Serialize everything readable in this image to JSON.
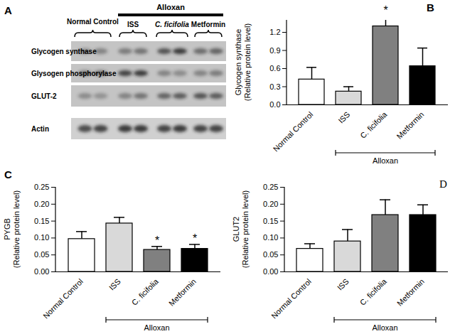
{
  "chart_data": [
    {
      "type": "bar",
      "title": "B",
      "ylabel": "Glycogen synthase\n(Relative protein level)",
      "categories": [
        "Normal Control",
        "ISS",
        "C. ficifolia",
        "Metformin"
      ],
      "values": [
        0.42,
        0.22,
        1.3,
        0.64
      ],
      "errors": [
        0.2,
        0.08,
        0.17,
        0.3
      ],
      "significance": [
        null,
        null,
        "*",
        null
      ],
      "colors": [
        "#ffffff",
        "#d9d9d9",
        "#808080",
        "#000000"
      ],
      "ylim": [
        0,
        1.4
      ],
      "yticks": [
        {
          "value": 0,
          "label": "0.0"
        },
        0.3,
        0.6,
        0.9,
        1.2
      ],
      "group": {
        "label": "Alloxan",
        "categories": [
          "ISS",
          "C. ficifolia",
          "Metformin"
        ]
      }
    },
    {
      "type": "bar",
      "title": "C",
      "ylabel": "PYGB\n(Relative protein level)",
      "categories": [
        "Normal Control",
        "ISS",
        "C. ficifolia",
        "Metformin"
      ],
      "values": [
        0.097,
        0.143,
        0.065,
        0.068
      ],
      "errors": [
        0.022,
        0.018,
        0.01,
        0.013
      ],
      "significance": [
        null,
        null,
        "*",
        "*"
      ],
      "colors": [
        "#ffffff",
        "#d9d9d9",
        "#808080",
        "#000000"
      ],
      "ylim": [
        0,
        0.25
      ],
      "yticks": [
        {
          "value": 0,
          "label": "0.00"
        },
        0.05,
        {
          "value": 0.1,
          "label": "0.10"
        },
        0.15,
        {
          "value": 0.2,
          "label": "0.20"
        },
        0.25
      ],
      "group": {
        "label": "Alloxan",
        "categories": [
          "ISS",
          "C. ficifolia",
          "Metformin"
        ]
      }
    },
    {
      "type": "bar",
      "title": "D",
      "ylabel": "GLUT2\n(Relative protein level)",
      "categories": [
        "Normal Control",
        "ISS",
        "C. ficifolia",
        "Metformin"
      ],
      "values": [
        0.068,
        0.09,
        0.168,
        0.168
      ],
      "errors": [
        0.015,
        0.035,
        0.045,
        0.03
      ],
      "significance": [
        null,
        null,
        null,
        null
      ],
      "colors": [
        "#ffffff",
        "#d9d9d9",
        "#808080",
        "#000000"
      ],
      "ylim": [
        0,
        0.25
      ],
      "yticks": [
        {
          "value": 0,
          "label": "0.00"
        },
        0.05,
        {
          "value": 0.1,
          "label": "0.10"
        },
        0.15,
        {
          "value": 0.2,
          "label": "0.20"
        },
        0.25
      ],
      "group": {
        "label": "Alloxan",
        "categories": [
          "ISS",
          "C. ficifolia",
          "Metformin"
        ]
      }
    }
  ],
  "blot": {
    "title": "A",
    "groups": [
      "Normal Control",
      "ISS",
      "C. ficifolia",
      "Metformin"
    ],
    "group_label": "Alloxan",
    "alloxan_groups": [
      "ISS",
      "C. ficifolia",
      "Metformin"
    ],
    "rows": [
      "Glycogen synthase",
      "Glysogen phosphorylase",
      "GLUT-2",
      "Actin"
    ]
  }
}
